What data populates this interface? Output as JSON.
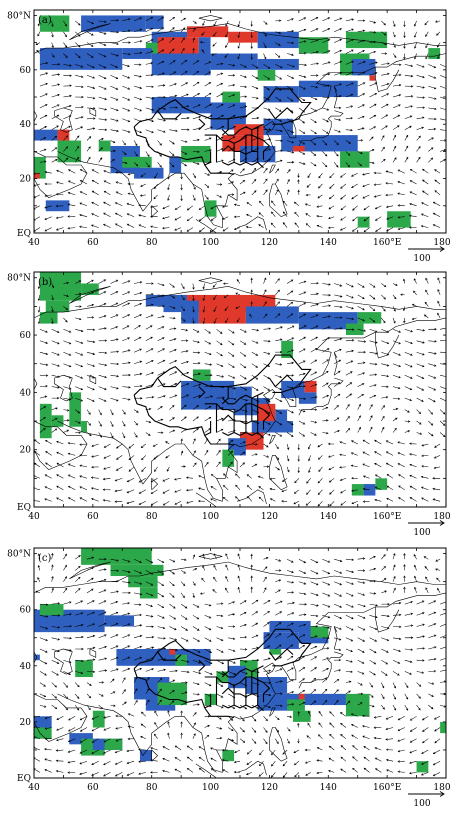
{
  "colors": {
    "green": "#2ca84a",
    "blue": "#2f5fbf",
    "red": "#e0392b"
  },
  "x_ticks": [
    "40",
    "60",
    "80",
    "100",
    "120",
    "140",
    "160°E",
    "180"
  ],
  "y_ticks": [
    "EQ",
    "20",
    "40",
    "60",
    "80°N"
  ],
  "reference_vector_label": "100",
  "panels": [
    {
      "label": "(a)",
      "cells": [
        [
          "g",
          42,
          80,
          52,
          74
        ],
        [
          "b",
          56,
          80,
          78,
          74
        ],
        [
          "b",
          78,
          80,
          84,
          75
        ],
        [
          "g",
          146,
          74,
          160,
          68
        ],
        [
          "g",
          174,
          68,
          178,
          64
        ],
        [
          "b",
          80,
          74,
          92,
          68
        ],
        [
          "r",
          92,
          76,
          106,
          72
        ],
        [
          "r",
          106,
          74,
          116,
          70
        ],
        [
          "b",
          116,
          74,
          130,
          68
        ],
        [
          "g",
          130,
          72,
          140,
          66
        ],
        [
          "r",
          82,
          72,
          88,
          64
        ],
        [
          "r",
          86,
          72,
          96,
          66
        ],
        [
          "b",
          96,
          72,
          100,
          66
        ],
        [
          "g",
          78,
          70,
          82,
          66
        ],
        [
          "b",
          42,
          68,
          70,
          60
        ],
        [
          "b",
          70,
          68,
          80,
          64
        ],
        [
          "b",
          80,
          66,
          100,
          58
        ],
        [
          "b",
          100,
          66,
          116,
          60
        ],
        [
          "b",
          116,
          64,
          130,
          60
        ],
        [
          "g",
          116,
          60,
          122,
          56
        ],
        [
          "g",
          144,
          66,
          154,
          58
        ],
        [
          "b",
          148,
          64,
          156,
          58
        ],
        [
          "r",
          154,
          58,
          156,
          56
        ],
        [
          "b",
          130,
          56,
          150,
          50
        ],
        [
          "b",
          118,
          54,
          130,
          48
        ],
        [
          "b",
          80,
          50,
          100,
          44
        ],
        [
          "b",
          100,
          48,
          112,
          38
        ],
        [
          "g",
          104,
          52,
          110,
          48
        ],
        [
          "r",
          108,
          40,
          124,
          36
        ],
        [
          "r",
          104,
          36,
          118,
          30
        ],
        [
          "b",
          118,
          42,
          128,
          36
        ],
        [
          "b",
          124,
          36,
          150,
          30
        ],
        [
          "r",
          128,
          32,
          132,
          30
        ],
        [
          "b",
          110,
          32,
          122,
          26
        ],
        [
          "b",
          40,
          38,
          48,
          34
        ],
        [
          "r",
          48,
          38,
          52,
          34
        ],
        [
          "g",
          48,
          34,
          56,
          26
        ],
        [
          "g",
          62,
          34,
          66,
          30
        ],
        [
          "g",
          40,
          28,
          44,
          20
        ],
        [
          "r",
          40,
          22,
          42,
          20
        ],
        [
          "b",
          66,
          32,
          76,
          22
        ],
        [
          "g",
          70,
          28,
          80,
          24
        ],
        [
          "b",
          74,
          24,
          84,
          20
        ],
        [
          "b",
          86,
          28,
          90,
          22
        ],
        [
          "g",
          90,
          32,
          100,
          26
        ],
        [
          "g",
          144,
          30,
          154,
          24
        ],
        [
          "b",
          44,
          12,
          52,
          8
        ],
        [
          "g",
          98,
          12,
          102,
          6
        ],
        [
          "g",
          150,
          6,
          154,
          2
        ],
        [
          "g",
          160,
          8,
          168,
          2
        ]
      ]
    },
    {
      "label": "(b)",
      "cells": [
        [
          "g",
          42,
          82,
          56,
          72
        ],
        [
          "g",
          56,
          78,
          62,
          74
        ],
        [
          "g",
          44,
          72,
          52,
          68
        ],
        [
          "g",
          42,
          68,
          48,
          64
        ],
        [
          "b",
          78,
          74,
          92,
          70
        ],
        [
          "b",
          84,
          72,
          90,
          68
        ],
        [
          "r",
          92,
          74,
          122,
          68
        ],
        [
          "r",
          96,
          70,
          112,
          64
        ],
        [
          "b",
          90,
          72,
          96,
          64
        ],
        [
          "b",
          112,
          70,
          130,
          64
        ],
        [
          "b",
          130,
          68,
          150,
          62
        ],
        [
          "b",
          146,
          66,
          150,
          62
        ],
        [
          "g",
          150,
          68,
          158,
          64
        ],
        [
          "g",
          146,
          64,
          152,
          60
        ],
        [
          "g",
          124,
          58,
          128,
          52
        ],
        [
          "g",
          94,
          48,
          100,
          44
        ],
        [
          "b",
          90,
          44,
          108,
          34
        ],
        [
          "b",
          108,
          42,
          114,
          38
        ],
        [
          "b",
          108,
          38,
          120,
          32
        ],
        [
          "r",
          116,
          36,
          122,
          30
        ],
        [
          "b",
          122,
          34,
          126,
          30
        ],
        [
          "b",
          114,
          30,
          128,
          26
        ],
        [
          "r",
          110,
          26,
          118,
          20
        ],
        [
          "b",
          106,
          24,
          112,
          18
        ],
        [
          "g",
          104,
          20,
          108,
          14
        ],
        [
          "b",
          124,
          44,
          132,
          38
        ],
        [
          "r",
          132,
          44,
          136,
          40
        ],
        [
          "b",
          130,
          40,
          136,
          36
        ],
        [
          "g",
          42,
          36,
          46,
          24
        ],
        [
          "g",
          46,
          32,
          50,
          28
        ],
        [
          "g",
          52,
          40,
          56,
          28
        ],
        [
          "g",
          56,
          30,
          58,
          26
        ],
        [
          "g",
          148,
          8,
          152,
          4
        ],
        [
          "b",
          152,
          8,
          156,
          4
        ],
        [
          "g",
          156,
          10,
          160,
          6
        ]
      ]
    },
    {
      "label": "(c)",
      "cells": [
        [
          "g",
          56,
          82,
          80,
          76
        ],
        [
          "g",
          66,
          76,
          84,
          72
        ],
        [
          "g",
          72,
          72,
          82,
          68
        ],
        [
          "g",
          76,
          68,
          82,
          64
        ],
        [
          "b",
          40,
          60,
          64,
          52
        ],
        [
          "b",
          64,
          58,
          74,
          54
        ],
        [
          "g",
          42,
          62,
          50,
          58
        ],
        [
          "b",
          68,
          46,
          84,
          40
        ],
        [
          "b",
          84,
          46,
          100,
          40
        ],
        [
          "r",
          86,
          46,
          88,
          44
        ],
        [
          "g",
          88,
          44,
          92,
          40
        ],
        [
          "b",
          40,
          44,
          42,
          42
        ],
        [
          "g",
          54,
          42,
          60,
          36
        ],
        [
          "g",
          120,
          50,
          124,
          44
        ],
        [
          "b",
          120,
          56,
          134,
          52
        ],
        [
          "b",
          118,
          52,
          130,
          46
        ],
        [
          "b",
          130,
          54,
          140,
          48
        ],
        [
          "g",
          134,
          54,
          140,
          50
        ],
        [
          "g",
          110,
          42,
          116,
          34
        ],
        [
          "b",
          112,
          36,
          126,
          30
        ],
        [
          "b",
          116,
          30,
          132,
          24
        ],
        [
          "r",
          130,
          30,
          134,
          28
        ],
        [
          "b",
          132,
          30,
          146,
          26
        ],
        [
          "g",
          146,
          30,
          154,
          22
        ],
        [
          "g",
          126,
          28,
          132,
          24
        ],
        [
          "g",
          128,
          24,
          134,
          20
        ],
        [
          "g",
          102,
          38,
          106,
          34
        ],
        [
          "b",
          106,
          40,
          112,
          32
        ],
        [
          "g",
          98,
          30,
          102,
          26
        ],
        [
          "b",
          74,
          36,
          86,
          28
        ],
        [
          "b",
          78,
          30,
          88,
          24
        ],
        [
          "g",
          82,
          34,
          92,
          26
        ],
        [
          "g",
          60,
          24,
          64,
          18
        ],
        [
          "b",
          40,
          22,
          46,
          18
        ],
        [
          "g",
          40,
          18,
          46,
          14
        ],
        [
          "b",
          52,
          16,
          60,
          12
        ],
        [
          "g",
          56,
          14,
          64,
          8
        ],
        [
          "b",
          60,
          14,
          70,
          10
        ],
        [
          "g",
          64,
          14,
          70,
          10
        ],
        [
          "b",
          76,
          10,
          80,
          6
        ],
        [
          "g",
          104,
          10,
          108,
          6
        ],
        [
          "g",
          170,
          6,
          174,
          2
        ],
        [
          "g",
          178,
          20,
          180,
          16
        ]
      ]
    }
  ]
}
